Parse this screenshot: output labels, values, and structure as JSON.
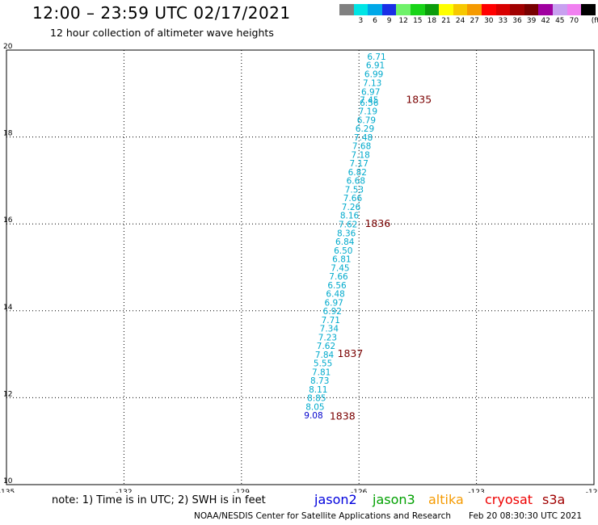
{
  "header": {
    "title": "12:00 – 23:59 UTC 02/17/2021",
    "subtitle": "12 hour collection of altimeter wave heights"
  },
  "legend": {
    "unit_label": "(ft)",
    "bins": [
      {
        "label": "",
        "color": "#808080"
      },
      {
        "label": "3",
        "color": "#00e5e5"
      },
      {
        "label": "6",
        "color": "#00a8e8"
      },
      {
        "label": "9",
        "color": "#1a2fe6"
      },
      {
        "label": "12",
        "color": "#6ff26a"
      },
      {
        "label": "15",
        "color": "#18d418"
      },
      {
        "label": "18",
        "color": "#0c9c0c"
      },
      {
        "label": "21",
        "color": "#ffff00"
      },
      {
        "label": "24",
        "color": "#f7c800"
      },
      {
        "label": "27",
        "color": "#f59a00"
      },
      {
        "label": "30",
        "color": "#ff0000"
      },
      {
        "label": "33",
        "color": "#d80000"
      },
      {
        "label": "36",
        "color": "#a00000"
      },
      {
        "label": "39",
        "color": "#780000"
      },
      {
        "label": "42",
        "color": "#a000a0"
      },
      {
        "label": "45",
        "color": "#c8a0f0"
      },
      {
        "label": "70",
        "color": "#f080f0"
      },
      {
        "label": "",
        "color": "#000000"
      }
    ]
  },
  "map": {
    "lon_ticks": [
      "-135",
      "-132",
      "-129",
      "-126",
      "-123",
      "-120"
    ],
    "lat_ticks": [
      "10",
      "12",
      "14",
      "16",
      "18",
      "20"
    ],
    "lon_range": [
      -135,
      -120
    ],
    "lat_range": [
      10,
      20
    ],
    "grid": "dotted",
    "track_color": "#00aacc",
    "last_point_color": "#0000cc",
    "time_label_color": "#7a0000",
    "track_points": [
      {
        "lon": -125.55,
        "lat": 19.78,
        "swh": "6.71"
      },
      {
        "lon": -125.58,
        "lat": 19.58,
        "swh": "6.91"
      },
      {
        "lon": -125.62,
        "lat": 19.38,
        "swh": "6.99"
      },
      {
        "lon": -125.66,
        "lat": 19.17,
        "swh": "7.13"
      },
      {
        "lon": -125.7,
        "lat": 18.97,
        "swh": "6.97"
      },
      {
        "lon": -125.74,
        "lat": 18.78,
        "swh": "7.45"
      },
      {
        "lon": -125.74,
        "lat": 18.72,
        "swh": "6.56"
      },
      {
        "lon": -125.77,
        "lat": 18.52,
        "swh": "7.19"
      },
      {
        "lon": -125.81,
        "lat": 18.32,
        "swh": "6.79"
      },
      {
        "lon": -125.85,
        "lat": 18.12,
        "swh": "6.29"
      },
      {
        "lon": -125.89,
        "lat": 17.92,
        "swh": "7.48"
      },
      {
        "lon": -125.93,
        "lat": 17.72,
        "swh": "7.68"
      },
      {
        "lon": -125.96,
        "lat": 17.52,
        "swh": "7.18"
      },
      {
        "lon": -126.0,
        "lat": 17.32,
        "swh": "7.17"
      },
      {
        "lon": -126.04,
        "lat": 17.12,
        "swh": "6.82"
      },
      {
        "lon": -126.08,
        "lat": 16.92,
        "swh": "6.68"
      },
      {
        "lon": -126.12,
        "lat": 16.72,
        "swh": "7.53"
      },
      {
        "lon": -126.16,
        "lat": 16.52,
        "swh": "7.66"
      },
      {
        "lon": -126.2,
        "lat": 16.32,
        "swh": "7.26"
      },
      {
        "lon": -126.24,
        "lat": 16.12,
        "swh": "8.16"
      },
      {
        "lon": -126.28,
        "lat": 15.92,
        "swh": "7.62"
      },
      {
        "lon": -126.32,
        "lat": 15.72,
        "swh": "8.36"
      },
      {
        "lon": -126.36,
        "lat": 15.52,
        "swh": "6.84"
      },
      {
        "lon": -126.4,
        "lat": 15.32,
        "swh": "6.50"
      },
      {
        "lon": -126.44,
        "lat": 15.12,
        "swh": "6.81"
      },
      {
        "lon": -126.48,
        "lat": 14.92,
        "swh": "7.45"
      },
      {
        "lon": -126.52,
        "lat": 14.72,
        "swh": "7.66"
      },
      {
        "lon": -126.56,
        "lat": 14.52,
        "swh": "6.56"
      },
      {
        "lon": -126.6,
        "lat": 14.32,
        "swh": "6.48"
      },
      {
        "lon": -126.64,
        "lat": 14.12,
        "swh": "6.97"
      },
      {
        "lon": -126.68,
        "lat": 13.92,
        "swh": "6.92"
      },
      {
        "lon": -126.72,
        "lat": 13.72,
        "swh": "7.71"
      },
      {
        "lon": -126.76,
        "lat": 13.52,
        "swh": "7.34"
      },
      {
        "lon": -126.8,
        "lat": 13.32,
        "swh": "7.23"
      },
      {
        "lon": -126.84,
        "lat": 13.12,
        "swh": "7.62"
      },
      {
        "lon": -126.88,
        "lat": 12.92,
        "swh": "7.84"
      },
      {
        "lon": -126.92,
        "lat": 12.72,
        "swh": "5.55"
      },
      {
        "lon": -126.96,
        "lat": 12.52,
        "swh": "7.81"
      },
      {
        "lon": -127.0,
        "lat": 12.32,
        "swh": "8.73"
      },
      {
        "lon": -127.04,
        "lat": 12.12,
        "swh": "8.11"
      },
      {
        "lon": -127.08,
        "lat": 11.92,
        "swh": "8.85"
      },
      {
        "lon": -127.12,
        "lat": 11.72,
        "swh": "8.05"
      },
      {
        "lon": -127.16,
        "lat": 11.52,
        "swh": "9.08"
      }
    ],
    "time_labels": [
      {
        "lon": -124.8,
        "lat": 18.78,
        "text": "1835"
      },
      {
        "lon": -125.85,
        "lat": 15.93,
        "text": "1836"
      },
      {
        "lon": -126.55,
        "lat": 12.94,
        "text": "1837"
      },
      {
        "lon": -126.75,
        "lat": 11.5,
        "text": "1838"
      }
    ]
  },
  "footer": {
    "note": "note: 1) Time is in UTC; 2) SWH is in feet",
    "satellites": [
      {
        "name": "jason2",
        "color": "#0000dd"
      },
      {
        "name": "jason3",
        "color": "#00a000"
      },
      {
        "name": "altika",
        "color": "#f59a00"
      },
      {
        "name": "cryosat",
        "color": "#ee0000"
      },
      {
        "name": "s3a",
        "color": "#a00000"
      }
    ],
    "credit": "NOAA/NESDIS Center for Satellite Applications and Research",
    "timestamp": "Feb 20 08:30:30 UTC 2021"
  }
}
